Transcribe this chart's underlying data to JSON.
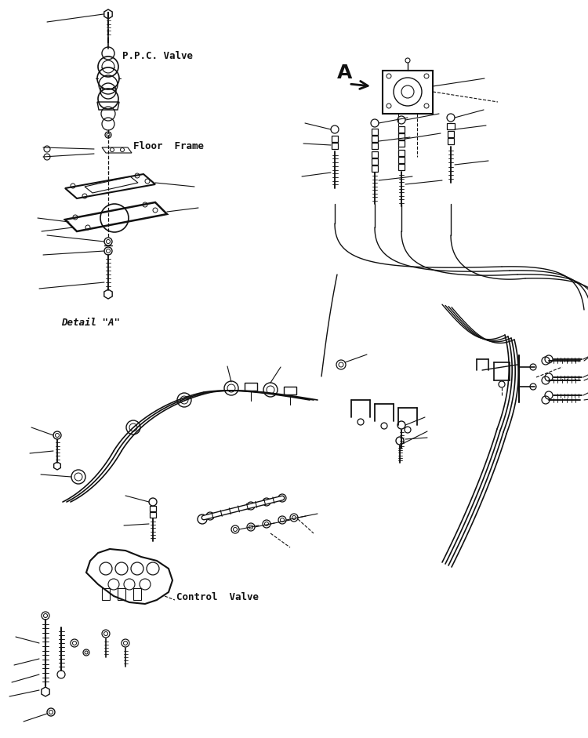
{
  "background_color": "#ffffff",
  "line_color": "#111111",
  "figsize": [
    7.5,
    9.41
  ],
  "dpi": 100,
  "labels": {
    "ppc_valve": "P.P.C. Valve",
    "floor_frame": "Floor  Frame",
    "detail_a": "Detail \"A\"",
    "control_valve": "Control  Valve",
    "A_label": "A"
  },
  "font_family": "monospace"
}
